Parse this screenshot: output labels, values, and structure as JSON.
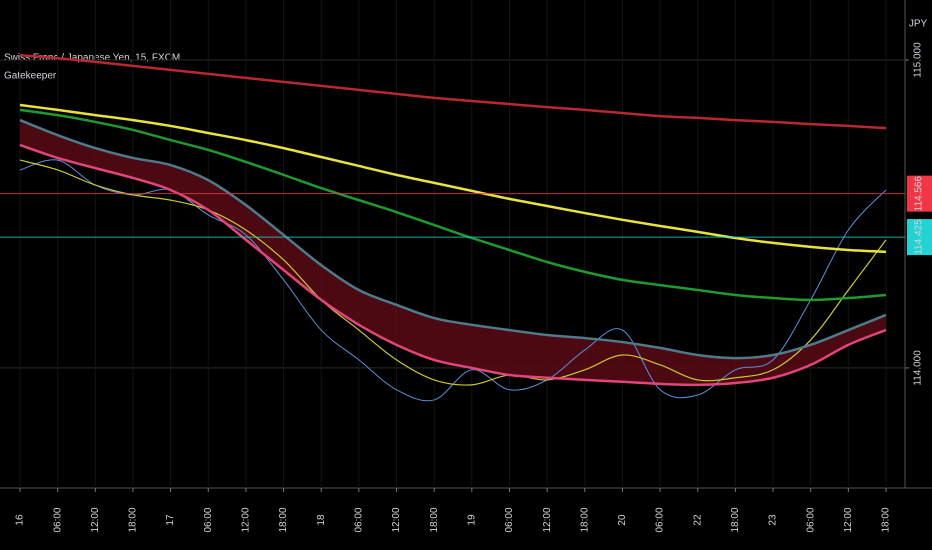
{
  "chart_data": {
    "type": "line",
    "title": "Swiss Franc / Japanese Yen, 15, FXCM",
    "subtitle": "Gatekeeper",
    "currency": "JPY",
    "categories": [
      "16",
      "06:00",
      "12:00",
      "18:00",
      "17",
      "06:00",
      "12:00",
      "18:00",
      "18",
      "06:00",
      "12:00",
      "18:00",
      "19",
      "06:00",
      "12:00",
      "18:00",
      "20",
      "06:00",
      "22",
      "18:00",
      "23",
      "06:00",
      "12:00",
      "18:00"
    ],
    "series": [
      {
        "color": "#5b8fd8",
        "values": [
          114.643,
          114.675,
          114.594,
          114.562,
          114.578,
          114.497,
          114.432,
          114.286,
          114.123,
          114.026,
          113.929,
          113.896,
          113.994,
          113.929,
          113.961,
          114.058,
          114.123,
          113.929,
          113.912,
          113.994,
          114.026,
          114.221,
          114.448,
          114.578
        ]
      },
      {
        "color": "#c8c832",
        "values": [
          114.675,
          114.643,
          114.594,
          114.562,
          114.545,
          114.513,
          114.448,
          114.351,
          114.221,
          114.123,
          114.026,
          113.961,
          113.945,
          113.977,
          113.961,
          113.994,
          114.042,
          114.01,
          113.961,
          113.968,
          113.994,
          114.091,
          114.253,
          114.416
        ]
      },
      {
        "color": "#4f7a8c",
        "values": [
          114.805,
          114.756,
          114.714,
          114.682,
          114.659,
          114.61,
          114.529,
          114.432,
          114.334,
          114.253,
          114.205,
          114.162,
          114.14,
          114.123,
          114.107,
          114.097,
          114.084,
          114.065,
          114.042,
          114.032,
          114.042,
          114.075,
          114.123,
          114.172
        ]
      },
      {
        "color": "#e0457b",
        "values": [
          114.724,
          114.682,
          114.649,
          114.617,
          114.578,
          114.513,
          114.416,
          114.318,
          114.221,
          114.14,
          114.075,
          114.026,
          114.0,
          113.977,
          113.968,
          113.961,
          113.955,
          113.948,
          113.945,
          113.951,
          113.968,
          114.01,
          114.075,
          114.123
        ]
      },
      {
        "color": "#1e9a2e",
        "values": [
          114.838,
          114.821,
          114.799,
          114.773,
          114.74,
          114.708,
          114.669,
          114.627,
          114.584,
          114.545,
          114.506,
          114.464,
          114.422,
          114.383,
          114.344,
          114.312,
          114.286,
          114.269,
          114.253,
          114.237,
          114.227,
          114.221,
          114.227,
          114.237
        ]
      },
      {
        "color": "#e8e23a",
        "values": [
          114.854,
          114.838,
          114.821,
          114.805,
          114.786,
          114.763,
          114.74,
          114.714,
          114.685,
          114.656,
          114.627,
          114.601,
          114.575,
          114.549,
          114.526,
          114.503,
          114.481,
          114.461,
          114.442,
          114.422,
          114.406,
          114.393,
          114.383,
          114.377
        ]
      },
      {
        "color": "#b8282e",
        "values": [
          115.016,
          115.006,
          114.994,
          114.981,
          114.968,
          114.955,
          114.942,
          114.929,
          114.916,
          114.903,
          114.89,
          114.877,
          114.867,
          114.857,
          114.847,
          114.838,
          114.828,
          114.818,
          114.812,
          114.805,
          114.799,
          114.792,
          114.786,
          114.779
        ]
      }
    ],
    "price_lines": [
      {
        "value": 114.566,
        "label": "114.566",
        "color": "#f23645"
      },
      {
        "value": 114.425,
        "label": "114.425",
        "color": "#22d3d3"
      }
    ],
    "ylim": [
      113.61,
      115.195
    ],
    "yticks": [
      {
        "value": 115,
        "label": "115.000"
      },
      {
        "value": 114,
        "label": "114.000"
      }
    ],
    "grid": true
  }
}
